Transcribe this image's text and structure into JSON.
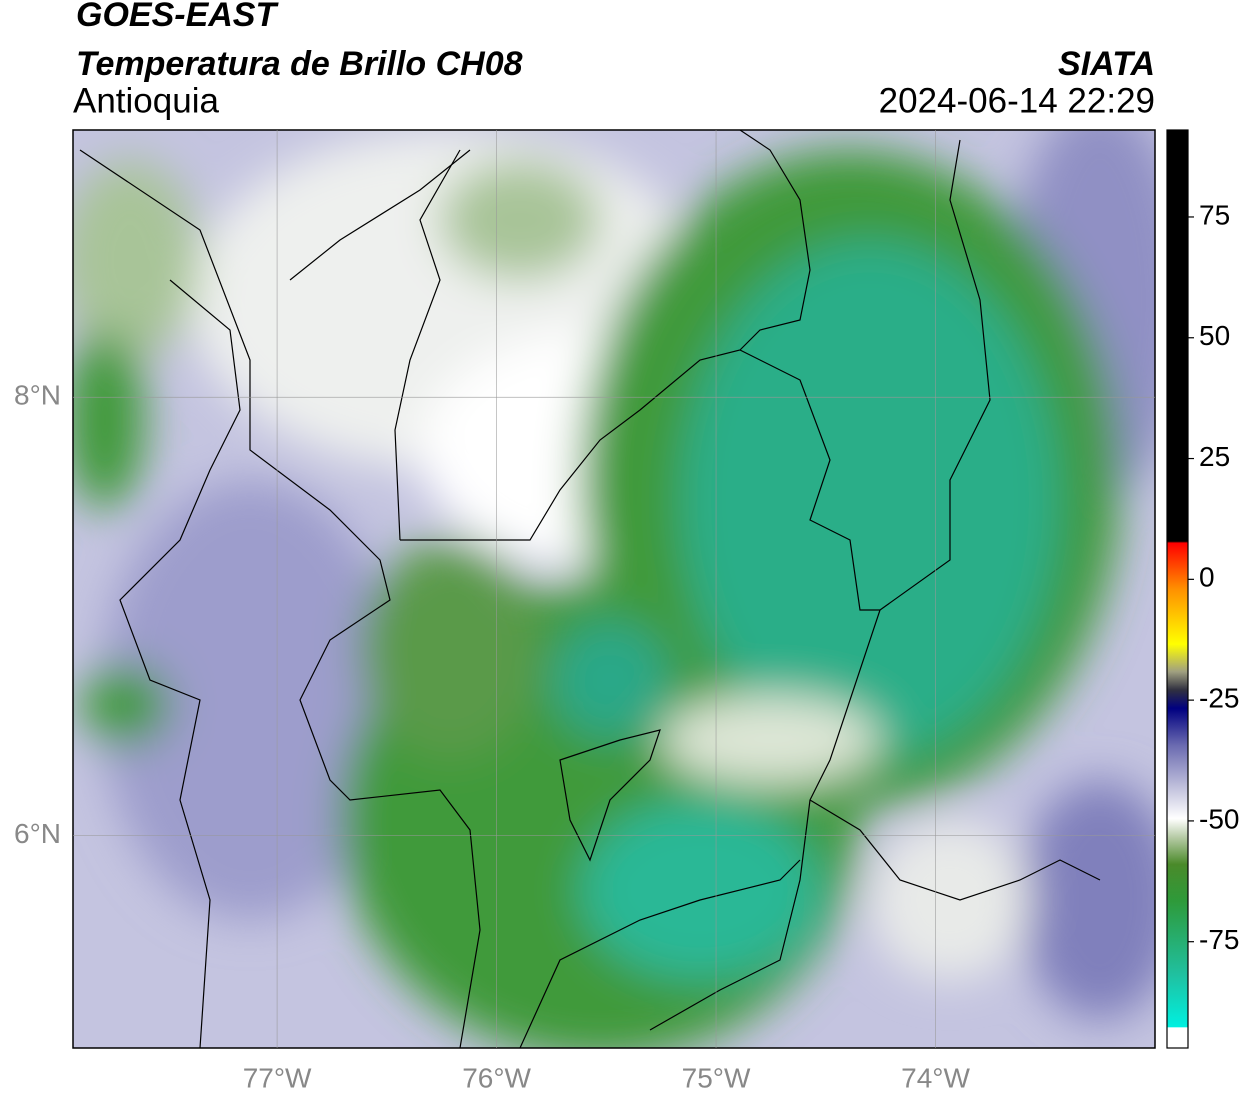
{
  "header": {
    "title": "GOES-EAST",
    "subtitle": "Temperatura de Brillo CH08",
    "region": "Antioquia",
    "source": "SIATA",
    "datetime": "2024-06-14 22:29"
  },
  "map": {
    "lon_range": [
      -77.93,
      -73.0
    ],
    "lat_range": [
      5.03,
      9.22
    ],
    "lat_ticks": [
      {
        "value": 8,
        "label": "8°N"
      },
      {
        "value": 6,
        "label": "6°N"
      }
    ],
    "lon_ticks": [
      {
        "value": -77,
        "label": "77°W"
      },
      {
        "value": -76,
        "label": "76°W"
      },
      {
        "value": -75,
        "label": "75°W"
      },
      {
        "value": -74,
        "label": "74°W"
      }
    ]
  },
  "colorbar": {
    "range": [
      -97,
      93
    ],
    "ticks": [
      75,
      50,
      25,
      0,
      -25,
      -50,
      -75
    ]
  }
}
